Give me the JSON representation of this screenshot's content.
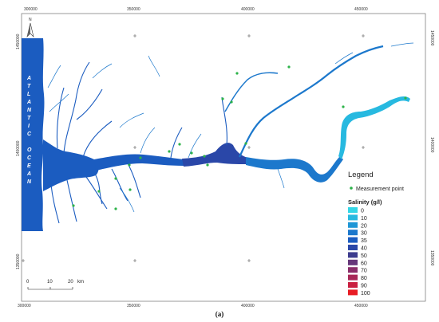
{
  "caption": "(a)",
  "north_label": "N",
  "ocean_label": [
    "A",
    "T",
    "L",
    "A",
    "N",
    "T",
    "I",
    "C",
    "O",
    "C",
    "E",
    "A",
    "N"
  ],
  "x_ticks": [
    "300000",
    "350000",
    "400000",
    "450000"
  ],
  "y_ticks": [
    "1450000",
    "1400000",
    "1350000"
  ],
  "legend": {
    "title": "Legend",
    "point_label": "Measurement point",
    "point_color": "#2db34a",
    "salinity_title": "Salinity (g/l)",
    "classes": [
      {
        "label": "0",
        "color": "#33d6e6"
      },
      {
        "label": "10",
        "color": "#27b9e0"
      },
      {
        "label": "20",
        "color": "#1e96d6"
      },
      {
        "label": "30",
        "color": "#1c78cc"
      },
      {
        "label": "35",
        "color": "#1b5cc0"
      },
      {
        "label": "40",
        "color": "#2a47a8"
      },
      {
        "label": "50",
        "color": "#3d3c8e"
      },
      {
        "label": "60",
        "color": "#66377a"
      },
      {
        "label": "70",
        "color": "#8a2e6a"
      },
      {
        "label": "80",
        "color": "#a82858"
      },
      {
        "label": "90",
        "color": "#c91f40"
      },
      {
        "label": "100",
        "color": "#e81c24"
      }
    ]
  },
  "scale_bar": {
    "labels": [
      "0",
      "10",
      "20"
    ],
    "unit": "km"
  }
}
